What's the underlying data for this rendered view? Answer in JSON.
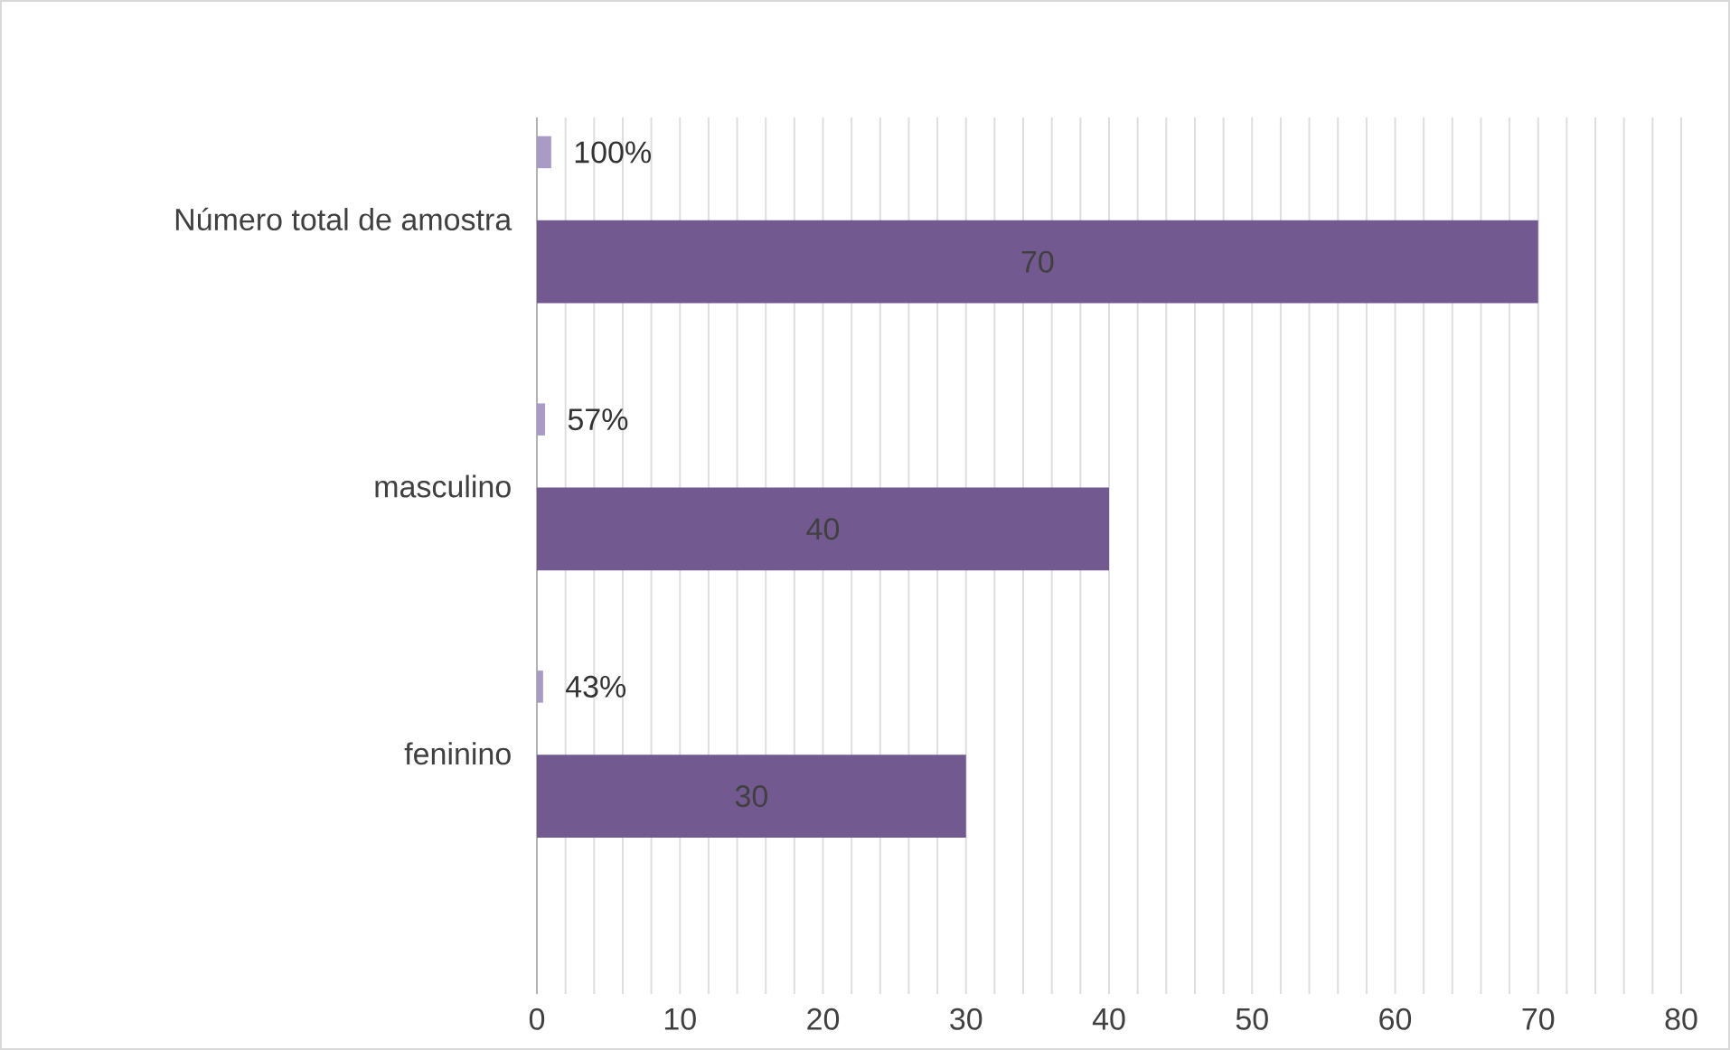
{
  "chart_data": {
    "type": "bar",
    "orientation": "horizontal",
    "categories": [
      "Número total de amostra",
      "masculino",
      "feninino"
    ],
    "series": [
      {
        "color": "#a99bc5",
        "values": [
          1,
          0.57,
          0.43
        ],
        "value_labels": [
          "100%",
          "57%",
          "43%"
        ]
      },
      {
        "color": "#725a91",
        "values": [
          70,
          40,
          30
        ],
        "value_labels": [
          "70",
          "40",
          "30"
        ]
      }
    ],
    "xlim": [
      0,
      80
    ],
    "xticks": [
      0,
      {
        "value": 2,
        "label": null
      },
      {
        "value": 4,
        "label": null
      },
      {
        "value": 6,
        "label": null
      },
      {
        "value": 8,
        "label": null
      },
      10,
      {
        "value": 12,
        "label": null
      },
      {
        "value": 14,
        "label": null
      },
      {
        "value": 16,
        "label": null
      },
      {
        "value": 18,
        "label": null
      },
      20,
      {
        "value": 22,
        "label": null
      },
      {
        "value": 24,
        "label": null
      },
      {
        "value": 26,
        "label": null
      },
      {
        "value": 28,
        "label": null
      },
      30,
      {
        "value": 32,
        "label": null
      },
      {
        "value": 34,
        "label": null
      },
      {
        "value": 36,
        "label": null
      },
      {
        "value": 38,
        "label": null
      },
      40,
      {
        "value": 42,
        "label": null
      },
      {
        "value": 44,
        "label": null
      },
      {
        "value": 46,
        "label": null
      },
      {
        "value": 48,
        "label": null
      },
      50,
      {
        "value": 52,
        "label": null
      },
      {
        "value": 54,
        "label": null
      },
      {
        "value": 56,
        "label": null
      },
      {
        "value": 58,
        "label": null
      },
      60,
      {
        "value": 62,
        "label": null
      },
      {
        "value": 64,
        "label": null
      },
      {
        "value": 66,
        "label": null
      },
      {
        "value": 68,
        "label": null
      },
      70,
      {
        "value": 72,
        "label": null
      },
      {
        "value": 74,
        "label": null
      },
      {
        "value": 76,
        "label": null
      },
      {
        "value": 78,
        "label": null
      },
      80
    ],
    "grid": "x"
  }
}
